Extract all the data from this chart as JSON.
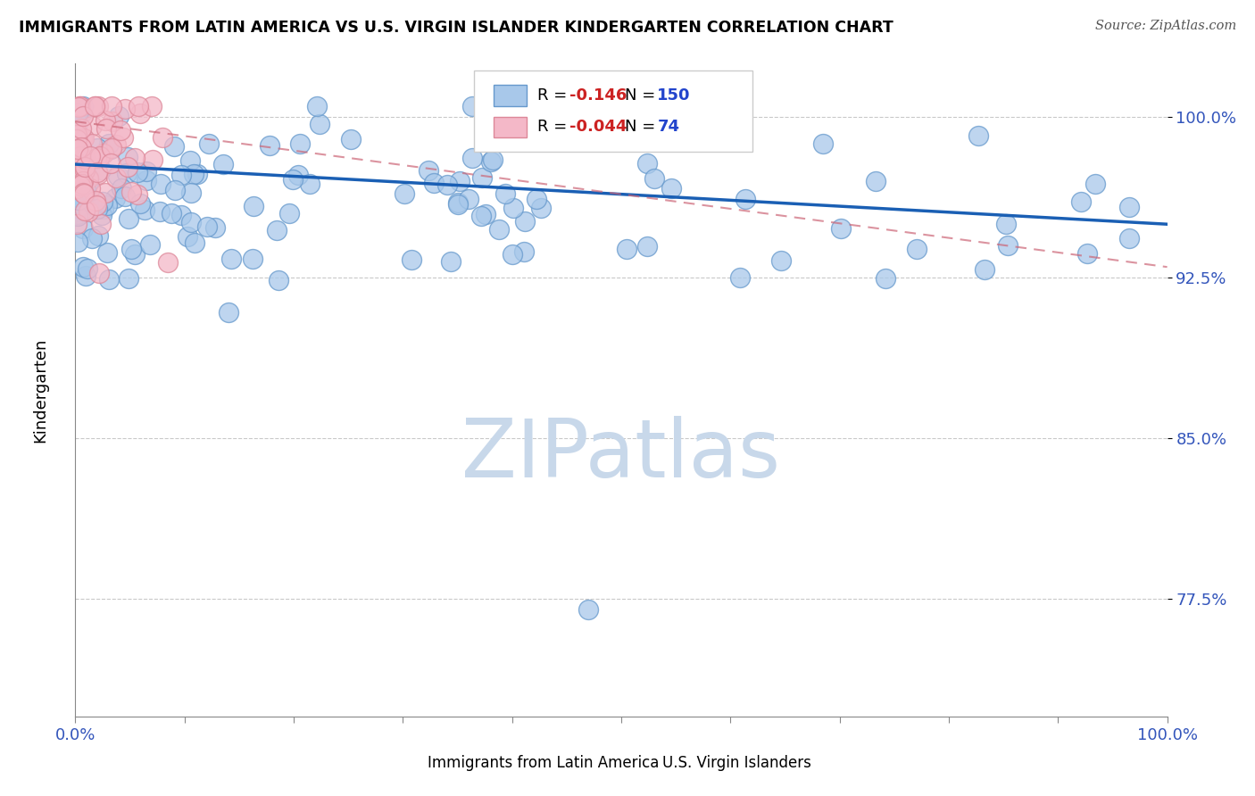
{
  "title": "IMMIGRANTS FROM LATIN AMERICA VS U.S. VIRGIN ISLANDER KINDERGARTEN CORRELATION CHART",
  "source": "Source: ZipAtlas.com",
  "ylabel": "Kindergarten",
  "xlim": [
    0.0,
    1.0
  ],
  "ylim": [
    0.72,
    1.025
  ],
  "yticks": [
    0.775,
    0.85,
    0.925,
    1.0
  ],
  "ytick_labels": [
    "77.5%",
    "85.0%",
    "92.5%",
    "100.0%"
  ],
  "legend_r_blue": "-0.146",
  "legend_n_blue": "150",
  "legend_r_pink": "-0.044",
  "legend_n_pink": "74",
  "blue_color": "#a8c8ea",
  "blue_edge": "#6699cc",
  "pink_color": "#f4b8c8",
  "pink_edge": "#dd8899",
  "trend_blue": "#1a5fb4",
  "trend_pink": "#cc6677",
  "watermark": "ZIPatlas",
  "watermark_color": "#c8d8ea",
  "solid_line_x": [
    0.0,
    1.0
  ],
  "solid_line_y": [
    0.978,
    0.95
  ],
  "dashed_line_x": [
    0.0,
    1.0
  ],
  "dashed_line_y": [
    0.998,
    0.93
  ]
}
